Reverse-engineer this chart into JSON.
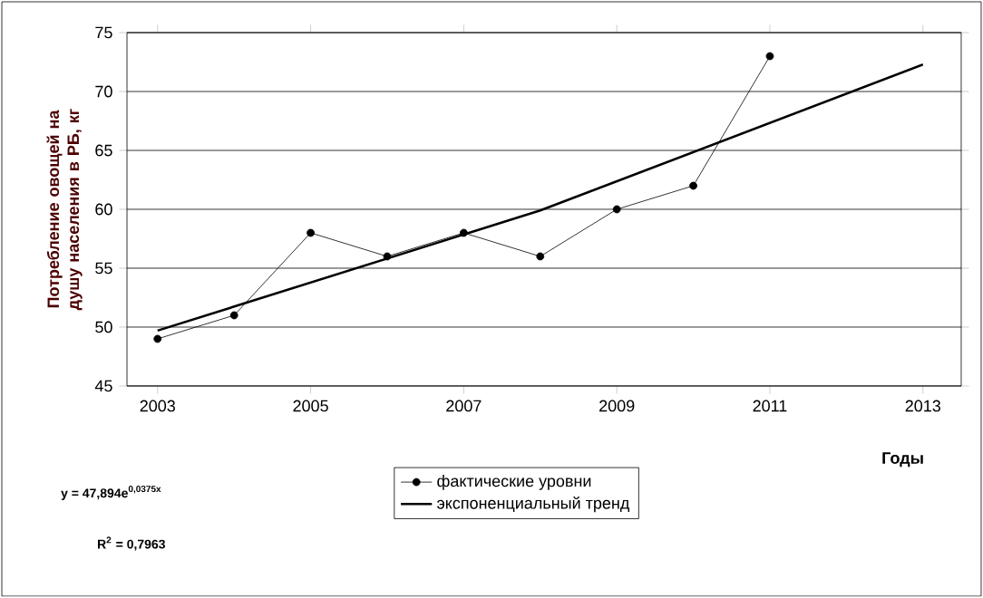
{
  "chart_data": {
    "type": "line",
    "ylabel": "Потребление овощей на душу населения в РБ, кг",
    "xlabel": "Годы",
    "xlim": [
      2002.6,
      2013.5
    ],
    "xticks": [
      2003,
      2005,
      2007,
      2009,
      2011,
      2013
    ],
    "ylim": [
      45,
      75
    ],
    "yticks": [
      45,
      50,
      55,
      60,
      65,
      70,
      75
    ],
    "grid": "y",
    "legend": "bottom",
    "series": [
      {
        "name": "фактические уровни",
        "color": "#000000",
        "marker": "circle",
        "x": [
          2003,
          2004,
          2005,
          2006,
          2007,
          2008,
          2009,
          2010,
          2011
        ],
        "values": [
          49,
          51,
          58,
          56,
          58,
          56,
          60,
          62,
          73
        ]
      },
      {
        "name": "экспоненциальный тренд",
        "color": "#000000",
        "marker": "none",
        "x": [
          2003,
          2008,
          2013
        ],
        "values": [
          49.7,
          59.9,
          72.3
        ]
      }
    ],
    "annotations": [
      "y = 47,894e$^{0,0375x}$",
      "R$^{2}$ = 0,7963"
    ]
  }
}
